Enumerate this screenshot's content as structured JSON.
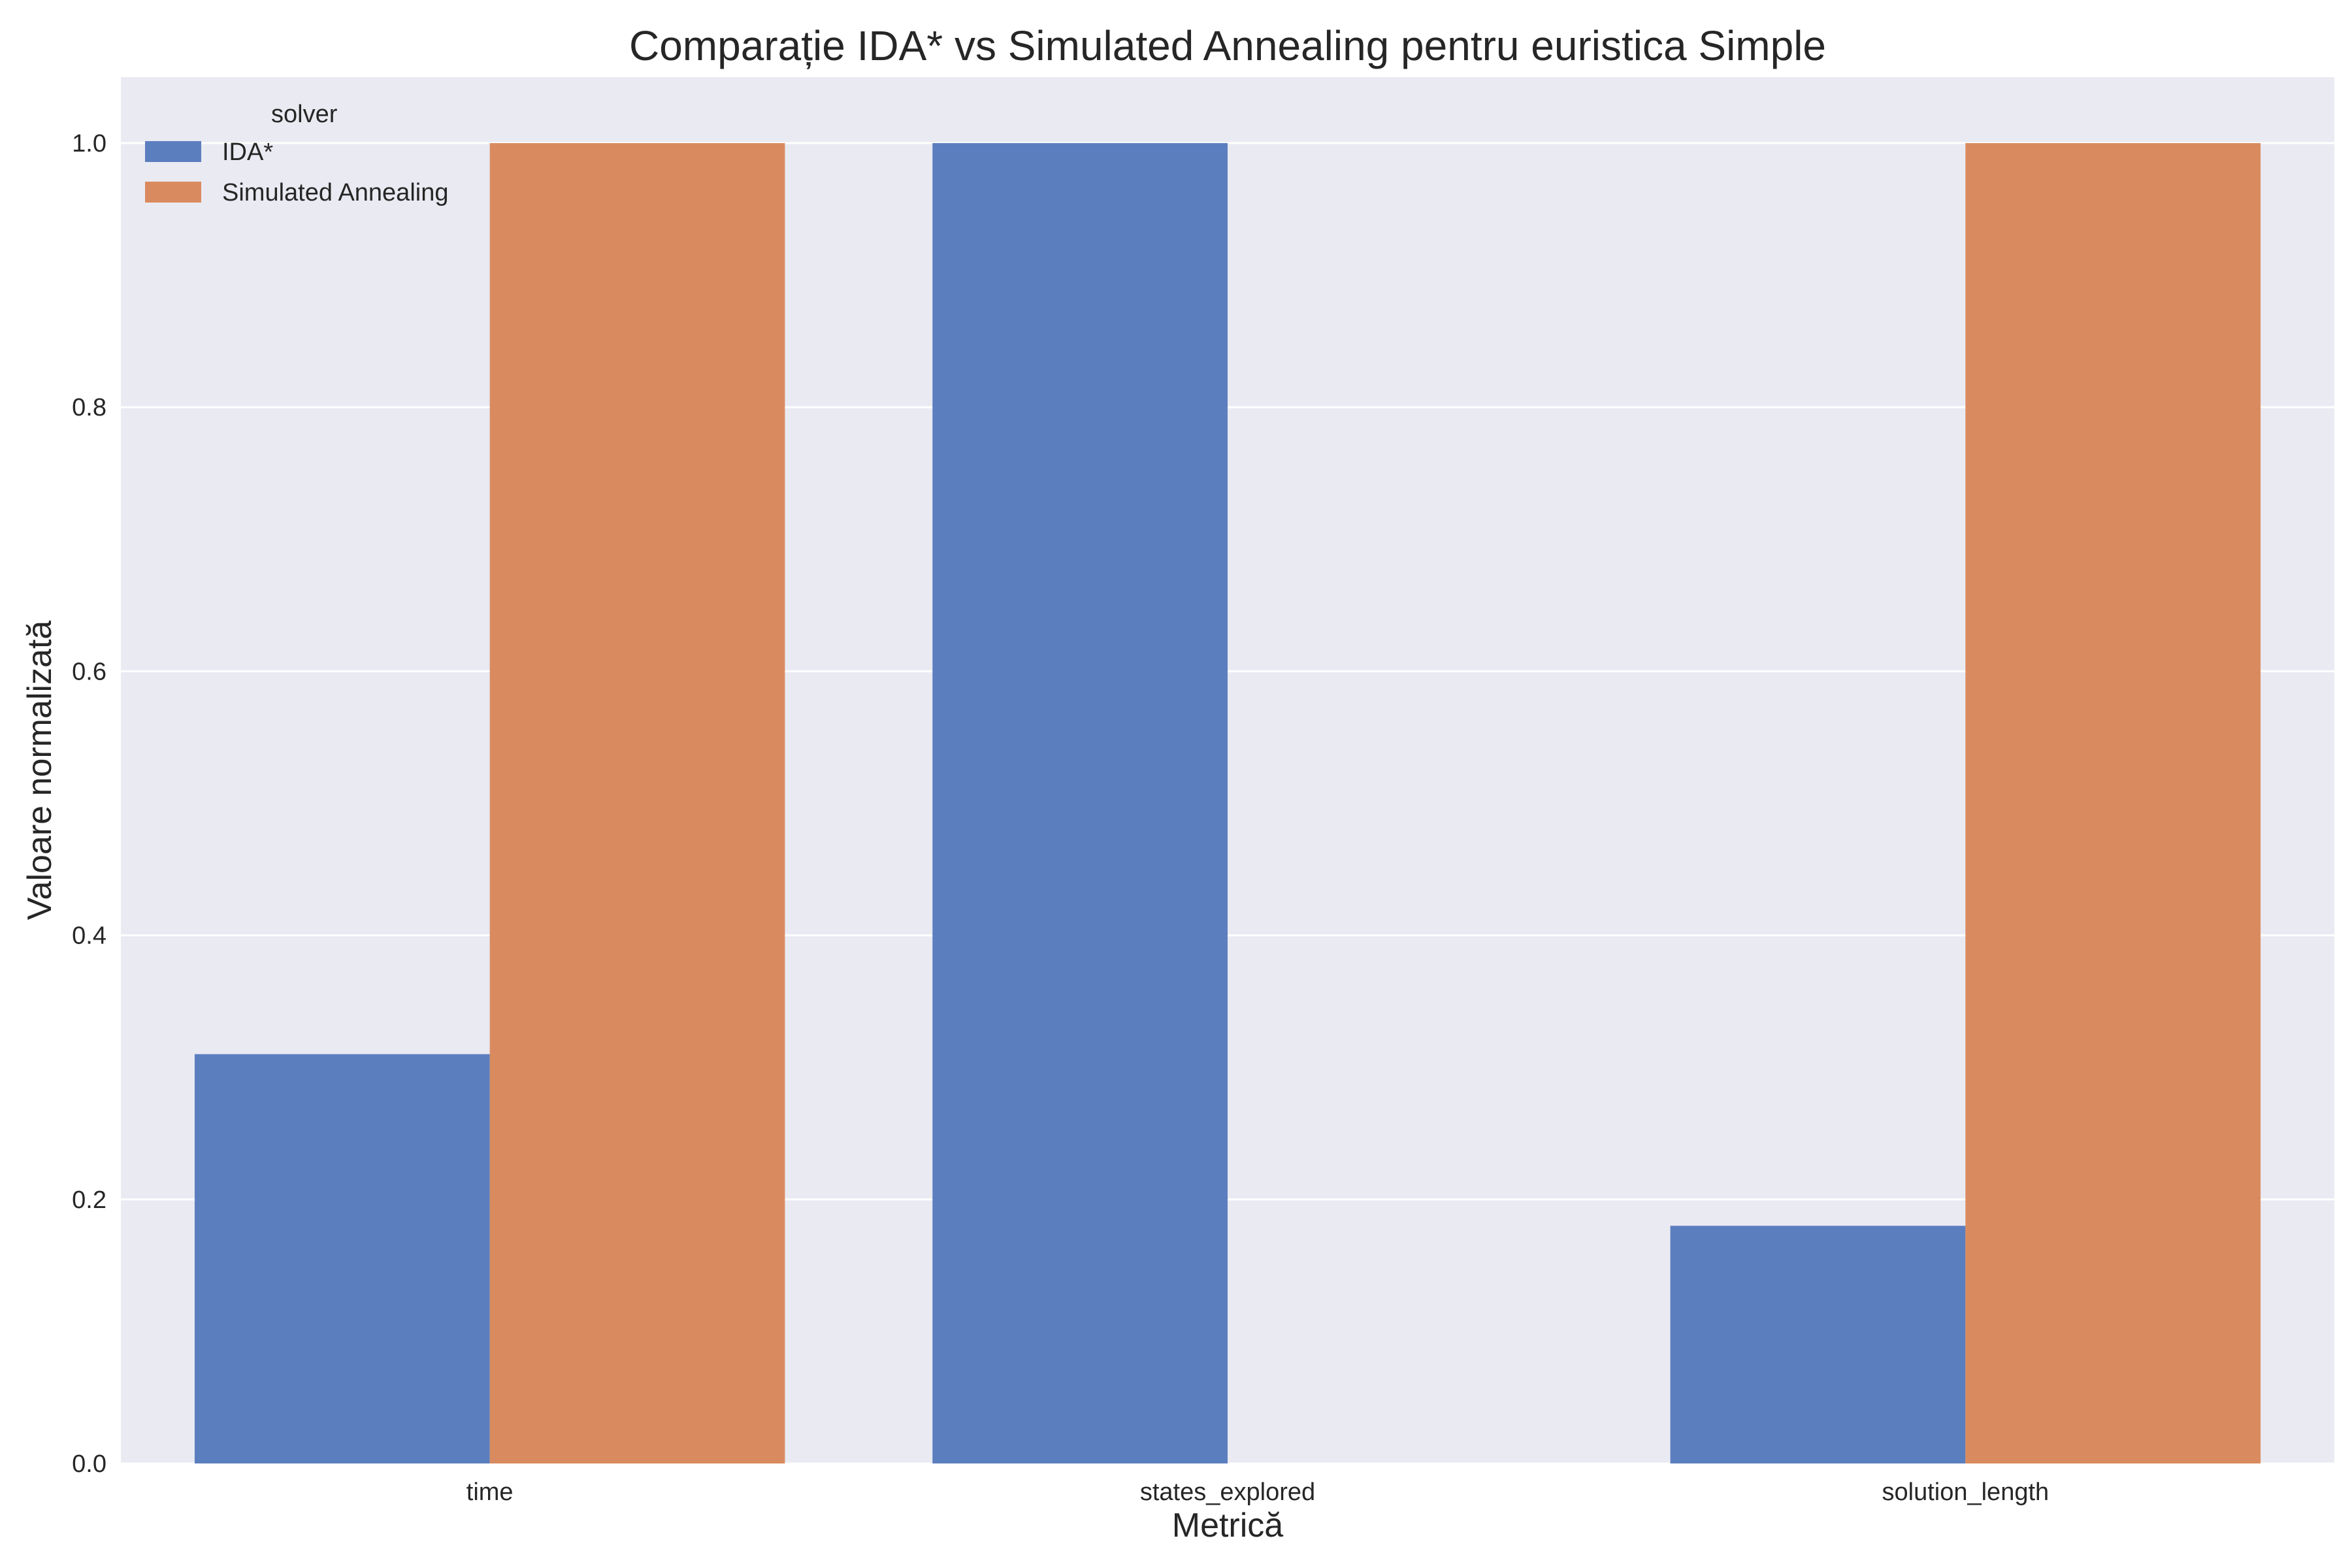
{
  "chart_data": {
    "type": "bar",
    "title": "Comparație IDA* vs Simulated Annealing pentru euristica Simple",
    "xlabel": "Metrică",
    "ylabel": "Valoare normalizată",
    "categories": [
      "time",
      "states_explored",
      "solution_length"
    ],
    "series": [
      {
        "name": "IDA*",
        "values": [
          0.31,
          1.0,
          0.18
        ],
        "color": "#5b7ebf"
      },
      {
        "name": "Simulated Annealing",
        "values": [
          1.0,
          0.0,
          1.0
        ],
        "color": "#d98b5f"
      }
    ],
    "ylim": [
      0,
      1.05
    ],
    "yticks": [
      "0.0",
      "0.2",
      "0.4",
      "0.6",
      "0.8",
      "1.0"
    ],
    "grid": true,
    "legend": {
      "title": "solver",
      "placement": "top-left"
    },
    "colors": {
      "plot_background": "#eaeaf2",
      "grid": "#ffffff"
    }
  }
}
